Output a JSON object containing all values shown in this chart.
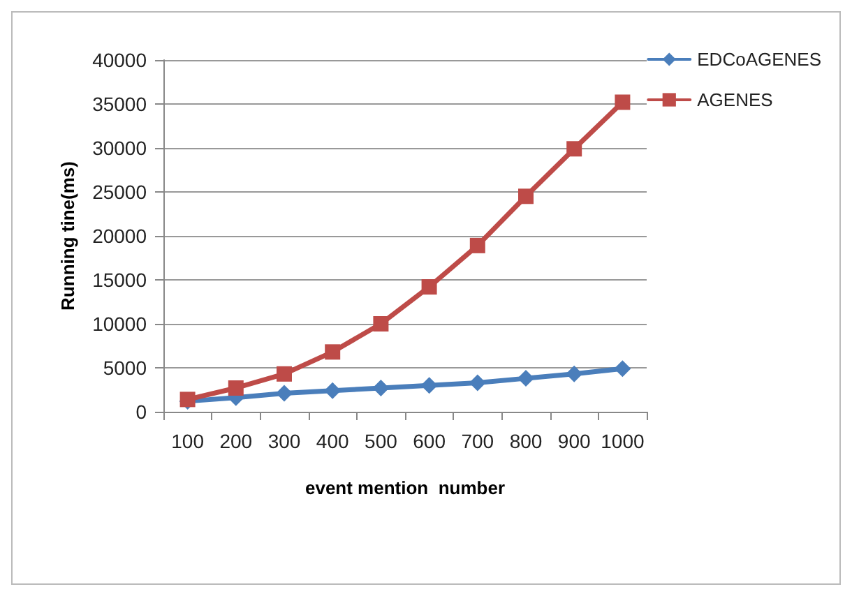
{
  "chart_data": {
    "type": "line",
    "xlabel": "event mention  number",
    "ylabel": "Running tine(ms)",
    "categories": [
      "100",
      "200",
      "300",
      "400",
      "500",
      "600",
      "700",
      "800",
      "900",
      "1000"
    ],
    "series": [
      {
        "name": "EDCoAGENES",
        "color": "#4a7ebb",
        "marker": "diamond",
        "values": [
          1200,
          1600,
          2100,
          2400,
          2700,
          3000,
          3300,
          3800,
          4300,
          4900
        ]
      },
      {
        "name": "AGENES",
        "color": "#be4b48",
        "marker": "square",
        "values": [
          1400,
          2700,
          4300,
          6800,
          10000,
          14200,
          18900,
          24500,
          29900,
          35200
        ]
      }
    ],
    "ylim": [
      0,
      40000
    ],
    "yticks": [
      0,
      5000,
      10000,
      15000,
      20000,
      25000,
      30000,
      35000,
      40000
    ],
    "grid": "y",
    "legend": "top right",
    "line_style": "solid"
  }
}
